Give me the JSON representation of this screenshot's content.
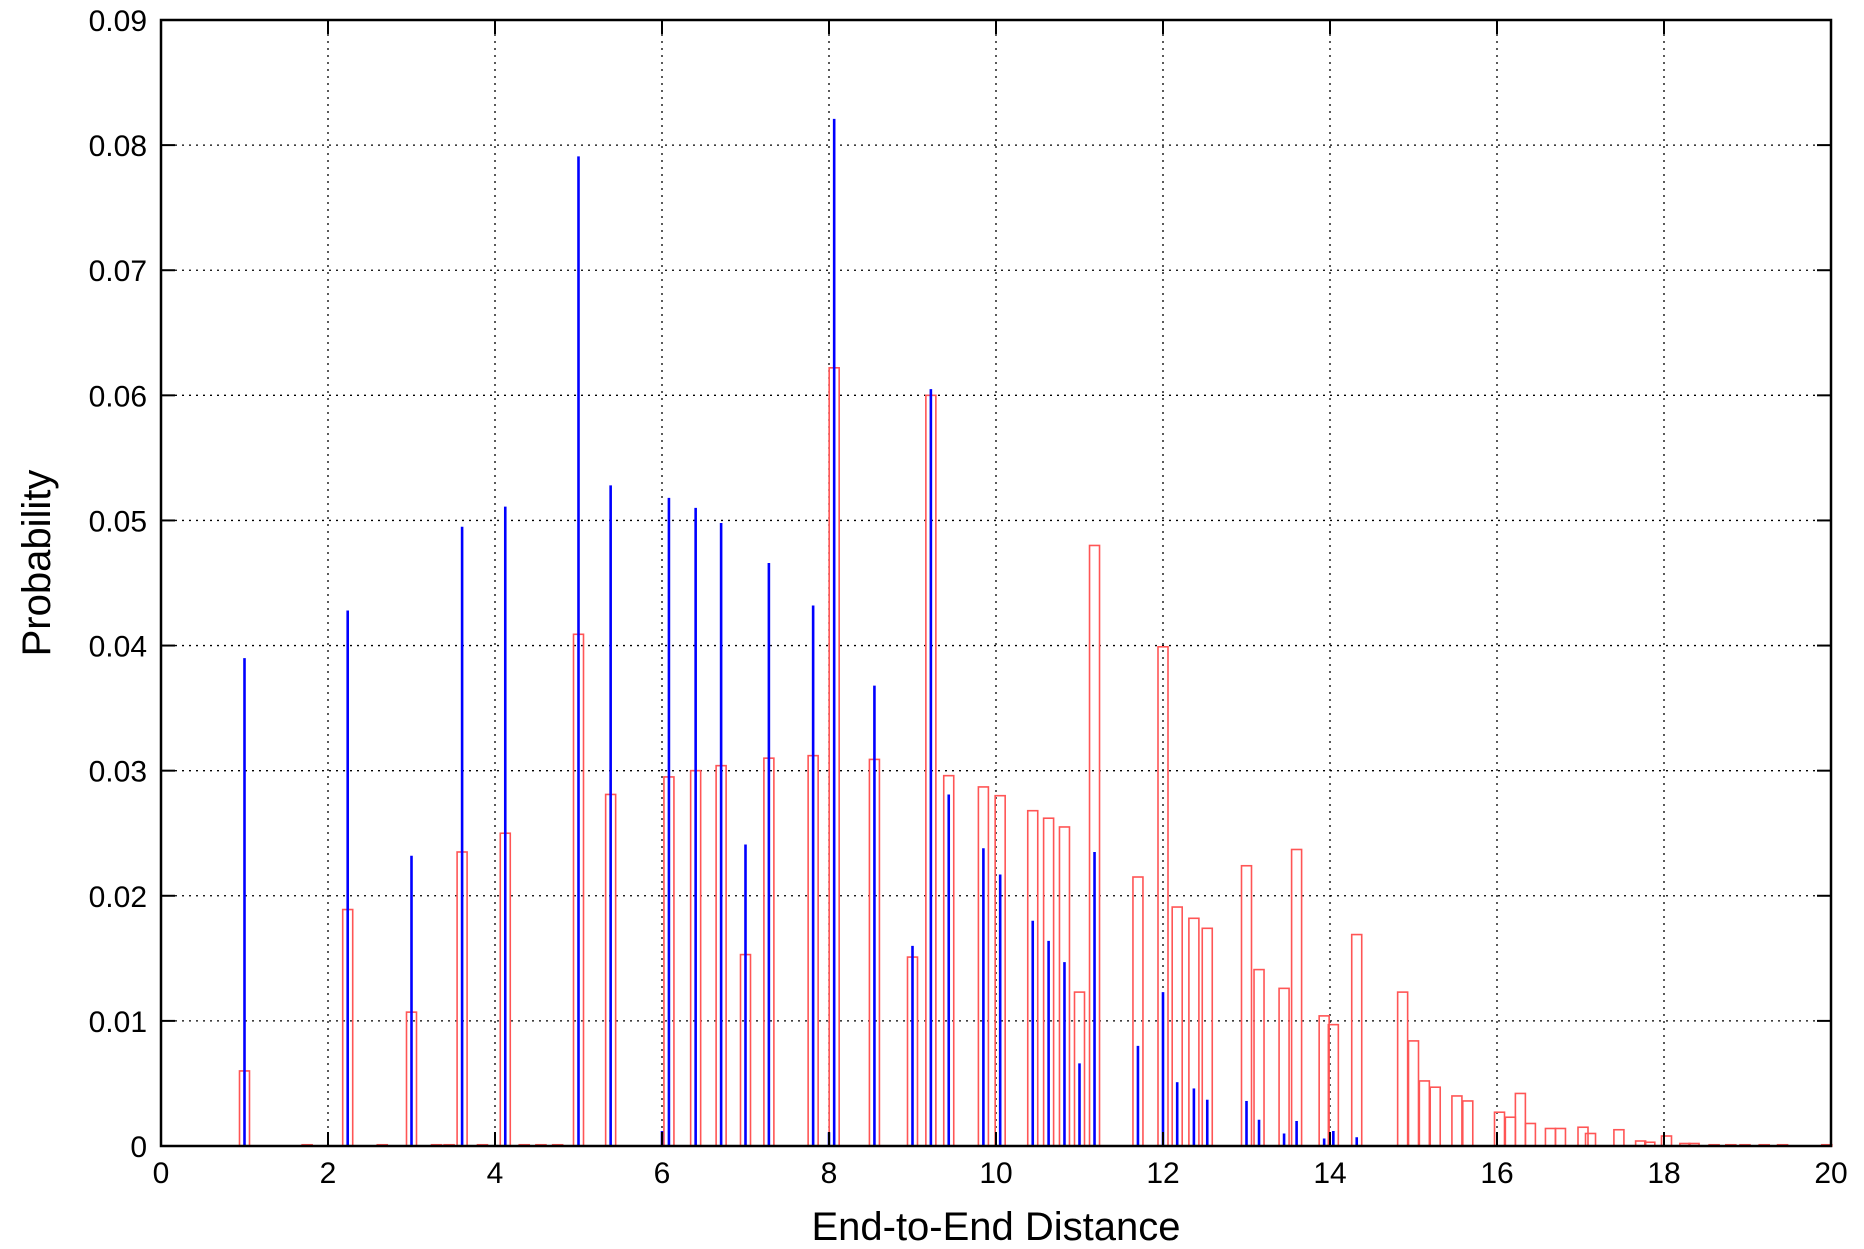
{
  "chart_data": {
    "type": "bar",
    "title": "",
    "xlabel": "End-to-End Distance",
    "ylabel": "Probability",
    "xlim": [
      0,
      20
    ],
    "ylim": [
      0,
      0.09
    ],
    "xticks": [
      "0",
      "2",
      "4",
      "6",
      "8",
      "10",
      "12",
      "14",
      "16",
      "18",
      "20"
    ],
    "yticks": [
      "0",
      "0.01",
      "0.02",
      "0.03",
      "0.04",
      "0.05",
      "0.06",
      "0.07",
      "0.08",
      "0.09"
    ],
    "grid": true,
    "legend": "none",
    "series": [
      {
        "style": "impulse",
        "color": "#0000ff",
        "points": [
          [
            1.0,
            0.039
          ],
          [
            2.236,
            0.0428
          ],
          [
            3.0,
            0.0232
          ],
          [
            3.606,
            0.0495
          ],
          [
            4.123,
            0.0511
          ],
          [
            5.0,
            0.0791
          ],
          [
            5.385,
            0.0528
          ],
          [
            6.0,
            0.0012
          ],
          [
            6.083,
            0.0518
          ],
          [
            6.403,
            0.051
          ],
          [
            6.708,
            0.0498
          ],
          [
            7.0,
            0.0241
          ],
          [
            7.28,
            0.0466
          ],
          [
            7.81,
            0.0432
          ],
          [
            8.0,
            0.0011
          ],
          [
            8.062,
            0.0821
          ],
          [
            8.544,
            0.0368
          ],
          [
            9.0,
            0.016
          ],
          [
            9.22,
            0.0605
          ],
          [
            9.434,
            0.0281
          ],
          [
            9.849,
            0.0238
          ],
          [
            10.05,
            0.0217
          ],
          [
            10.44,
            0.018
          ],
          [
            10.63,
            0.0164
          ],
          [
            10.82,
            0.0147
          ],
          [
            11.0,
            0.0066
          ],
          [
            11.18,
            0.0235
          ],
          [
            11.7,
            0.008
          ],
          [
            12.0,
            0.0123
          ],
          [
            12.17,
            0.0051
          ],
          [
            12.37,
            0.0046
          ],
          [
            12.53,
            0.0037
          ],
          [
            13.0,
            0.0036
          ],
          [
            13.15,
            0.0021
          ],
          [
            13.45,
            0.001
          ],
          [
            13.6,
            0.002
          ],
          [
            13.93,
            0.0006
          ],
          [
            14.04,
            0.0012
          ],
          [
            14.32,
            0.0007
          ]
        ]
      },
      {
        "style": "hollow-bar",
        "color": "#ff5555",
        "points": [
          [
            1.0,
            0.006
          ],
          [
            1.75,
            0.0001
          ],
          [
            2.236,
            0.0189
          ],
          [
            2.65,
            0.0001
          ],
          [
            3.0,
            0.0107
          ],
          [
            3.3,
            0.0001
          ],
          [
            3.45,
            0.0001
          ],
          [
            3.606,
            0.0235
          ],
          [
            3.85,
            0.0001
          ],
          [
            4.123,
            0.025
          ],
          [
            4.35,
            0.0001
          ],
          [
            4.55,
            0.0001
          ],
          [
            4.75,
            0.0001
          ],
          [
            5.0,
            0.0409
          ],
          [
            5.385,
            0.0281
          ],
          [
            6.083,
            0.0295
          ],
          [
            6.403,
            0.03
          ],
          [
            6.708,
            0.0304
          ],
          [
            7.0,
            0.0153
          ],
          [
            7.28,
            0.031
          ],
          [
            7.81,
            0.0312
          ],
          [
            8.062,
            0.0622
          ],
          [
            8.544,
            0.0309
          ],
          [
            9.0,
            0.0151
          ],
          [
            9.22,
            0.06
          ],
          [
            9.434,
            0.0296
          ],
          [
            9.849,
            0.0287
          ],
          [
            10.05,
            0.028
          ],
          [
            10.44,
            0.0268
          ],
          [
            10.63,
            0.0262
          ],
          [
            10.82,
            0.0255
          ],
          [
            11.0,
            0.0123
          ],
          [
            11.18,
            0.048
          ],
          [
            11.7,
            0.0215
          ],
          [
            12.0,
            0.0399
          ],
          [
            12.17,
            0.0191
          ],
          [
            12.37,
            0.0182
          ],
          [
            12.53,
            0.0174
          ],
          [
            13.0,
            0.0224
          ],
          [
            13.15,
            0.0141
          ],
          [
            13.45,
            0.0126
          ],
          [
            13.6,
            0.0237
          ],
          [
            13.93,
            0.0104
          ],
          [
            14.04,
            0.0097
          ],
          [
            14.32,
            0.0169
          ],
          [
            14.87,
            0.0123
          ],
          [
            15.0,
            0.0084
          ],
          [
            15.13,
            0.0052
          ],
          [
            15.26,
            0.0047
          ],
          [
            15.52,
            0.004
          ],
          [
            15.65,
            0.0036
          ],
          [
            16.03,
            0.0027
          ],
          [
            16.16,
            0.0023
          ],
          [
            16.28,
            0.0042
          ],
          [
            16.4,
            0.0018
          ],
          [
            16.64,
            0.0014
          ],
          [
            16.76,
            0.0014
          ],
          [
            17.03,
            0.0015
          ],
          [
            17.12,
            0.001
          ],
          [
            17.46,
            0.0013
          ],
          [
            17.72,
            0.0004
          ],
          [
            17.83,
            0.0003
          ],
          [
            18.03,
            0.0008
          ],
          [
            18.25,
            0.0002
          ],
          [
            18.36,
            0.0002
          ],
          [
            18.6,
            0.0001
          ],
          [
            18.8,
            0.0001
          ],
          [
            18.97,
            0.0001
          ],
          [
            19.2,
            0.0001
          ],
          [
            19.42,
            0.0001
          ],
          [
            19.95,
            0.0001
          ]
        ]
      }
    ]
  }
}
